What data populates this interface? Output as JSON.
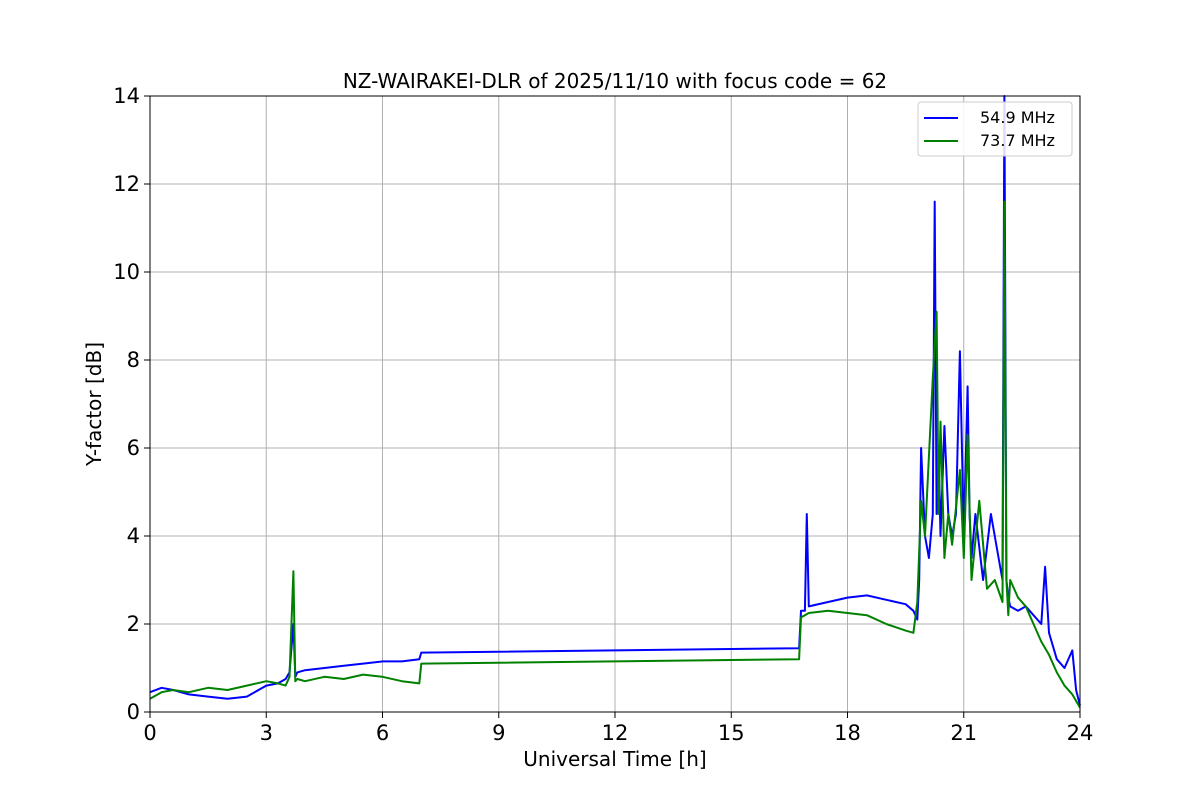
{
  "chart_data": {
    "type": "line",
    "title": "NZ-WAIRAKEI-DLR of 2025/11/10 with focus code = 62",
    "xlabel": "Universal Time [h]",
    "ylabel": "Y-factor [dB]",
    "xlim": [
      0,
      24
    ],
    "ylim": [
      0,
      14
    ],
    "xticks": [
      0,
      3,
      6,
      9,
      12,
      15,
      18,
      21,
      24
    ],
    "yticks": [
      0,
      2,
      4,
      6,
      8,
      10,
      12,
      14
    ],
    "grid": true,
    "legend_position": "top-right",
    "series": [
      {
        "name": "54.9 MHz",
        "color": "#0000ff",
        "x": [
          0,
          0.3,
          0.6,
          1.0,
          1.5,
          2.0,
          2.5,
          3.0,
          3.3,
          3.5,
          3.6,
          3.7,
          3.75,
          3.8,
          4.0,
          4.5,
          5.0,
          5.5,
          6.0,
          6.5,
          6.95,
          7.0,
          16.75,
          16.8,
          16.9,
          16.95,
          17.0,
          17.5,
          18.0,
          18.5,
          19.0,
          19.5,
          19.7,
          19.8,
          19.85,
          19.9,
          20.0,
          20.1,
          20.2,
          20.25,
          20.3,
          20.35,
          20.4,
          20.5,
          20.6,
          20.7,
          20.8,
          20.9,
          21.0,
          21.1,
          21.15,
          21.2,
          21.3,
          21.5,
          21.7,
          21.9,
          22.0,
          22.05,
          22.1,
          22.15,
          22.2,
          22.4,
          22.6,
          22.8,
          23.0,
          23.1,
          23.2,
          23.4,
          23.6,
          23.8,
          23.9,
          24.0
        ],
        "values": [
          0.45,
          0.55,
          0.5,
          0.4,
          0.35,
          0.3,
          0.35,
          0.6,
          0.65,
          0.75,
          0.9,
          2.0,
          0.8,
          0.9,
          0.95,
          1.0,
          1.05,
          1.1,
          1.15,
          1.15,
          1.2,
          1.35,
          1.45,
          2.3,
          2.3,
          4.5,
          2.4,
          2.5,
          2.6,
          2.65,
          2.55,
          2.45,
          2.3,
          2.1,
          3.0,
          6.0,
          4.0,
          3.5,
          4.5,
          11.6,
          4.5,
          6.0,
          4.0,
          6.5,
          4.5,
          4.0,
          4.5,
          8.2,
          4.0,
          7.4,
          4.5,
          3.5,
          4.5,
          3.0,
          4.5,
          3.5,
          3.0,
          14.0,
          3.0,
          2.6,
          2.4,
          2.3,
          2.4,
          2.2,
          2.0,
          3.3,
          1.8,
          1.2,
          1.0,
          1.4,
          0.5,
          0.15
        ]
      },
      {
        "name": "73.7 MHz",
        "color": "#008000",
        "x": [
          0,
          0.3,
          0.6,
          1.0,
          1.5,
          2.0,
          2.5,
          3.0,
          3.3,
          3.5,
          3.6,
          3.7,
          3.75,
          3.8,
          4.0,
          4.5,
          5.0,
          5.5,
          6.0,
          6.5,
          6.95,
          7.0,
          16.75,
          16.8,
          16.9,
          17.0,
          17.5,
          18.0,
          18.5,
          19.0,
          19.5,
          19.7,
          19.8,
          19.9,
          20.0,
          20.2,
          20.3,
          20.35,
          20.4,
          20.5,
          20.6,
          20.7,
          20.9,
          21.0,
          21.1,
          21.2,
          21.4,
          21.6,
          21.8,
          22.0,
          22.05,
          22.1,
          22.15,
          22.2,
          22.4,
          22.6,
          22.8,
          23.0,
          23.2,
          23.4,
          23.6,
          23.8,
          24.0
        ],
        "values": [
          0.3,
          0.45,
          0.5,
          0.45,
          0.55,
          0.5,
          0.6,
          0.7,
          0.65,
          0.6,
          0.8,
          3.2,
          0.7,
          0.75,
          0.7,
          0.8,
          0.75,
          0.85,
          0.8,
          0.7,
          0.65,
          1.1,
          1.2,
          2.15,
          2.2,
          2.25,
          2.3,
          2.25,
          2.2,
          2.0,
          1.85,
          1.8,
          2.5,
          4.8,
          4.0,
          7.6,
          9.1,
          4.5,
          6.6,
          3.5,
          4.5,
          3.8,
          5.5,
          3.5,
          6.3,
          3.0,
          4.8,
          2.8,
          3.0,
          2.5,
          11.6,
          3.0,
          2.2,
          3.0,
          2.6,
          2.4,
          2.0,
          1.6,
          1.3,
          0.9,
          0.6,
          0.4,
          0.1
        ]
      }
    ]
  }
}
